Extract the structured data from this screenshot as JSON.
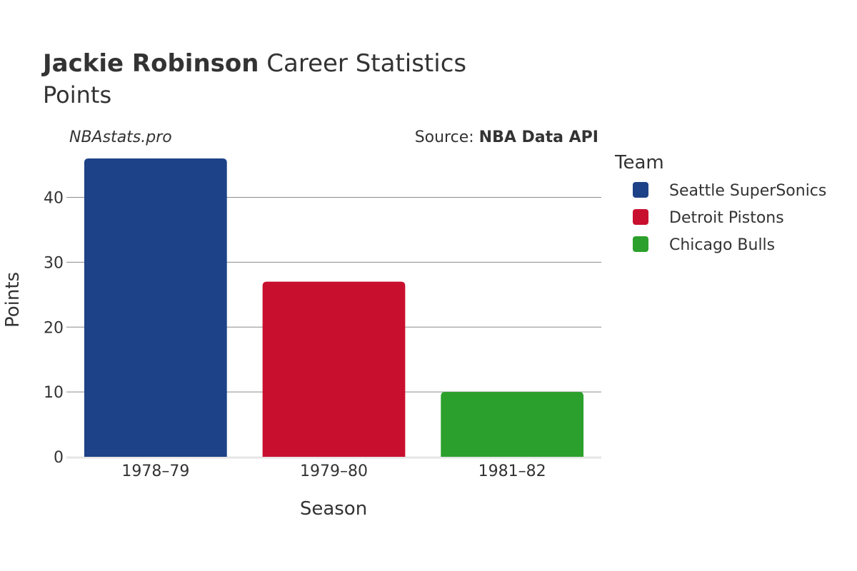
{
  "chart_data": {
    "type": "bar",
    "title": {
      "bold": "Jackie Robinson",
      "rest": " Career Statistics"
    },
    "subtitle": "Points",
    "watermark": "NBAstats.pro",
    "source": {
      "prefix": "Source: ",
      "name": "NBA Data API"
    },
    "xlabel": "Season",
    "ylabel": "Points",
    "ylim": [
      0,
      46
    ],
    "yticks": [
      0,
      10,
      20,
      30,
      40
    ],
    "grid": true,
    "categories": [
      "1978–79",
      "1979–80",
      "1981–82"
    ],
    "series": [
      {
        "name": "Seattle SuperSonics",
        "category": "1978–79",
        "value": 46,
        "color": "#1d4287"
      },
      {
        "name": "Detroit Pistons",
        "category": "1979–80",
        "value": 27,
        "color": "#c8102e"
      },
      {
        "name": "Chicago Bulls",
        "category": "1981–82",
        "value": 10,
        "color": "#2ca02c"
      }
    ],
    "legend": {
      "title": "Team",
      "position": "right"
    }
  }
}
